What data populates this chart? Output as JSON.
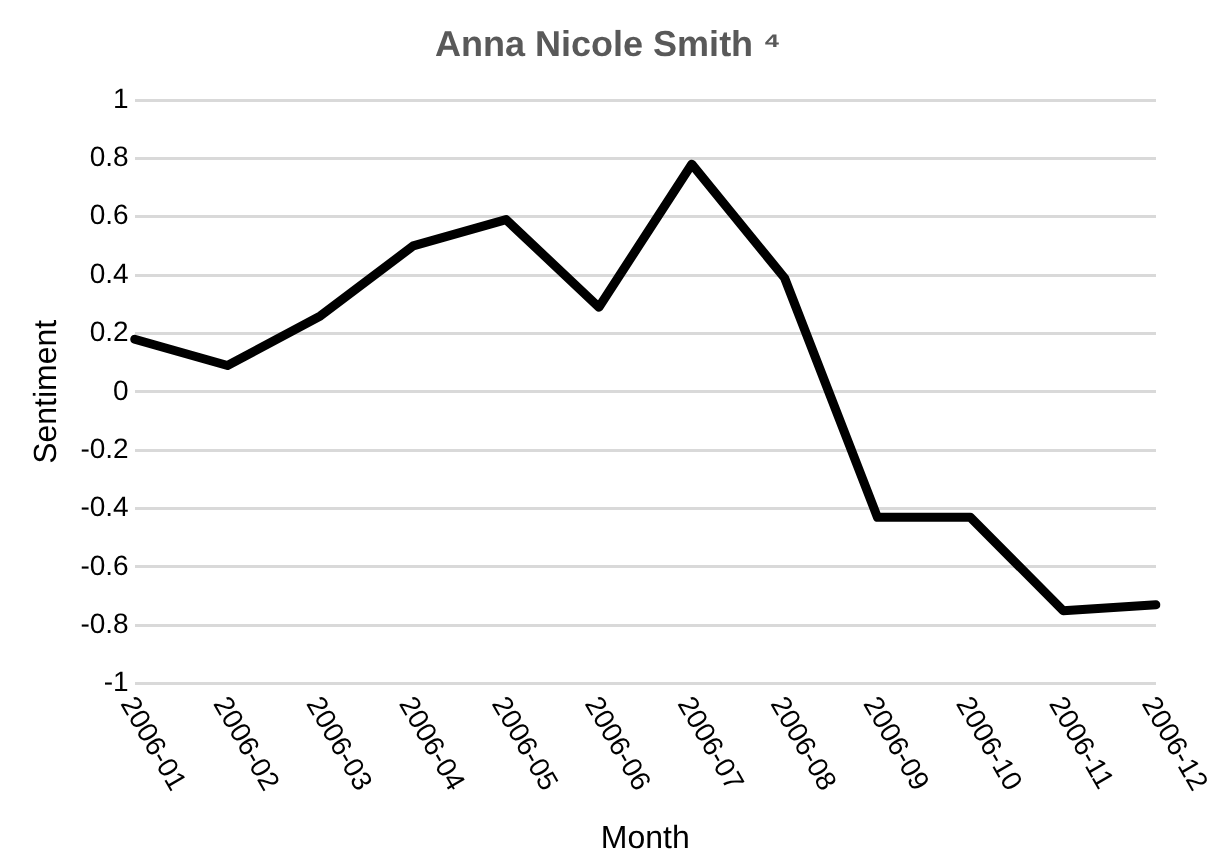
{
  "chart_data": {
    "type": "line",
    "title": "Anna Nicole Smith ⁴",
    "xlabel": "Month",
    "ylabel": "Sentiment",
    "categories": [
      "2006-01",
      "2006-02",
      "2006-03",
      "2006-04",
      "2006-05",
      "2006-06",
      "2006-07",
      "2006-08",
      "2006-09",
      "2006-10",
      "2006-11",
      "2006-12"
    ],
    "series": [
      {
        "color": "#000000",
        "values": [
          0.18,
          0.09,
          0.26,
          0.5,
          0.59,
          0.29,
          0.78,
          0.39,
          -0.43,
          -0.43,
          -0.75,
          -0.73
        ]
      }
    ],
    "ylim": [
      -1,
      1
    ],
    "yticks": [
      -1,
      -0.8,
      -0.6,
      -0.4,
      -0.2,
      0,
      0.2,
      0.4,
      0.6,
      0.8,
      1
    ],
    "grid": "y",
    "legend": false,
    "marker": "none",
    "line_style": "solid"
  }
}
